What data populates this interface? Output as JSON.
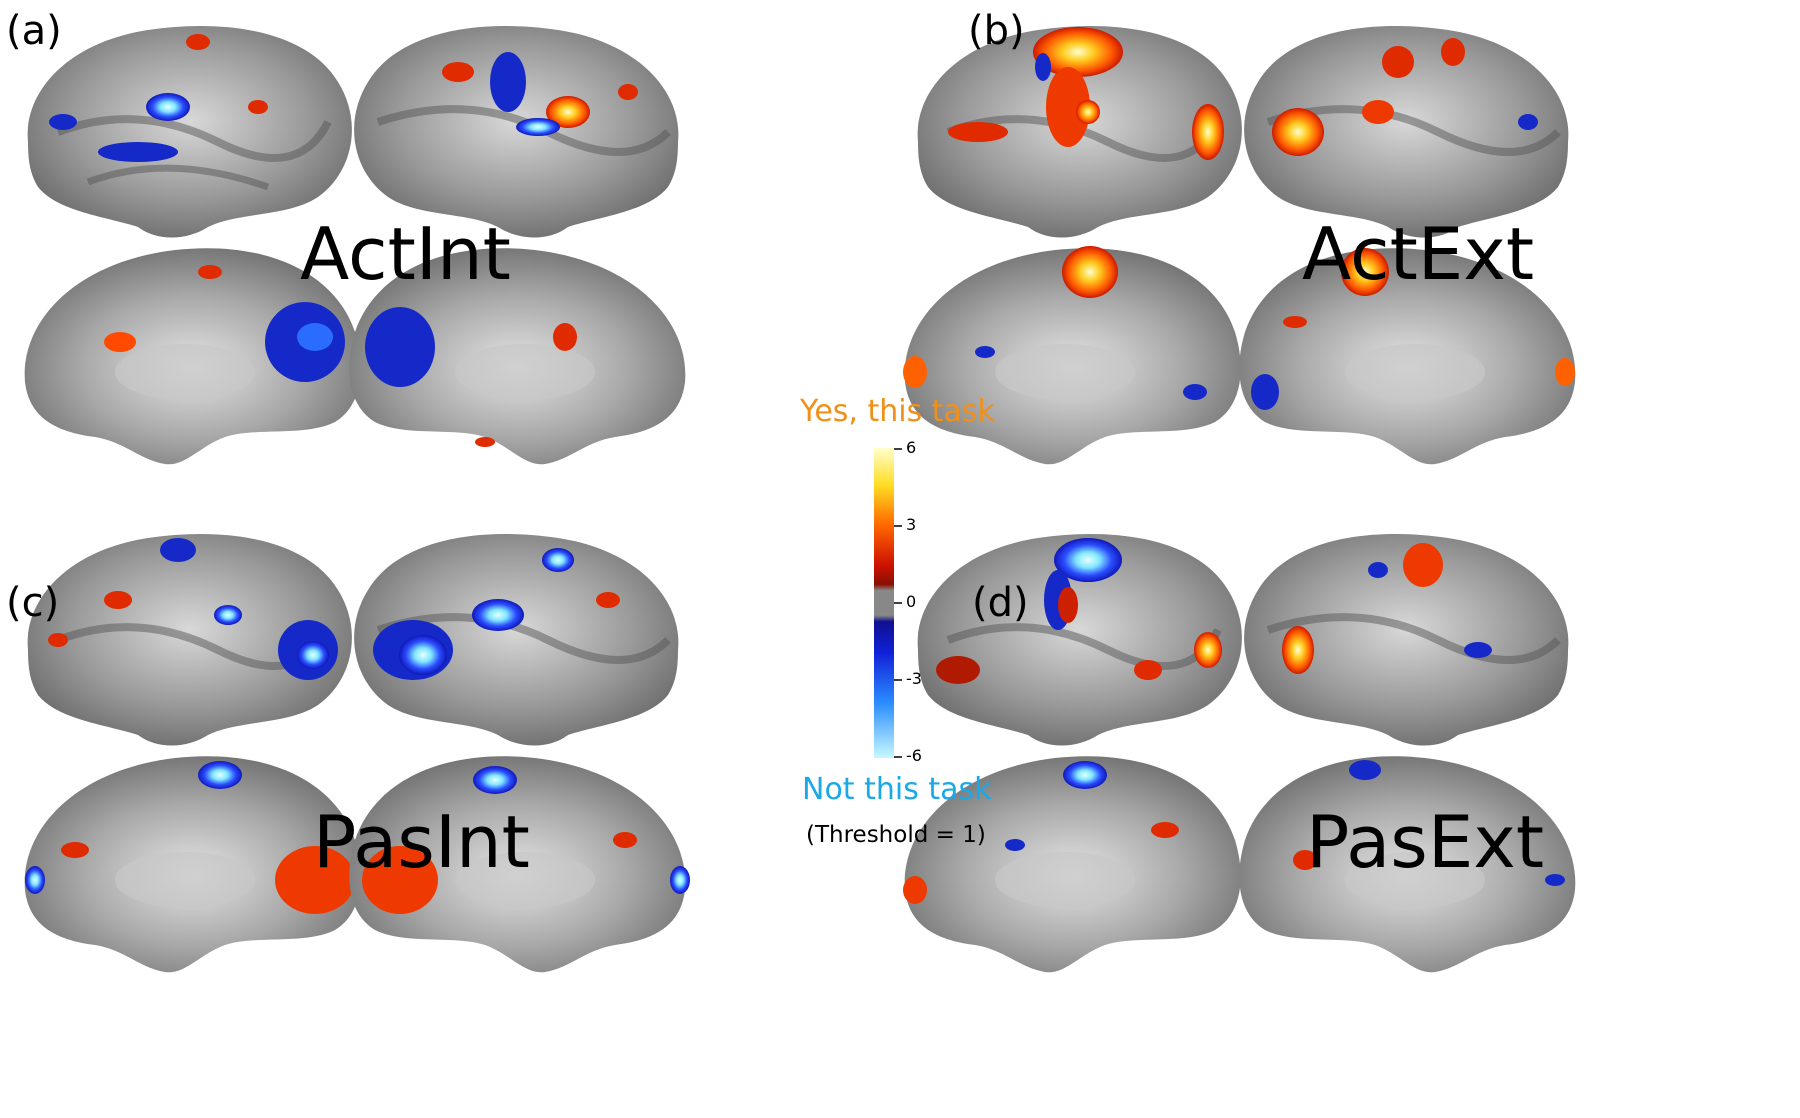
{
  "panels": {
    "a": {
      "letter": "(a)",
      "title": "ActInt"
    },
    "b": {
      "letter": "(b)",
      "title": "ActExt"
    },
    "c": {
      "letter": "(c)",
      "title": "PasInt"
    },
    "d": {
      "letter": "(d)",
      "title": "PasExt"
    }
  },
  "colorbar": {
    "top_label": "Yes, this task",
    "bottom_label": "Not this task",
    "threshold_note": "(Threshold = 1)",
    "ticks": [
      "6",
      "3",
      "0",
      "-3",
      "-6"
    ],
    "colors": {
      "yes": "#f0901a",
      "no": "#1aa8e8",
      "pos_high": "#ffffcc",
      "pos_mid": "#ff9900",
      "pos_low": "#cc1100",
      "neutral": "#888888",
      "neg_low": "#1020c8",
      "neg_high": "#bff4ff"
    }
  }
}
